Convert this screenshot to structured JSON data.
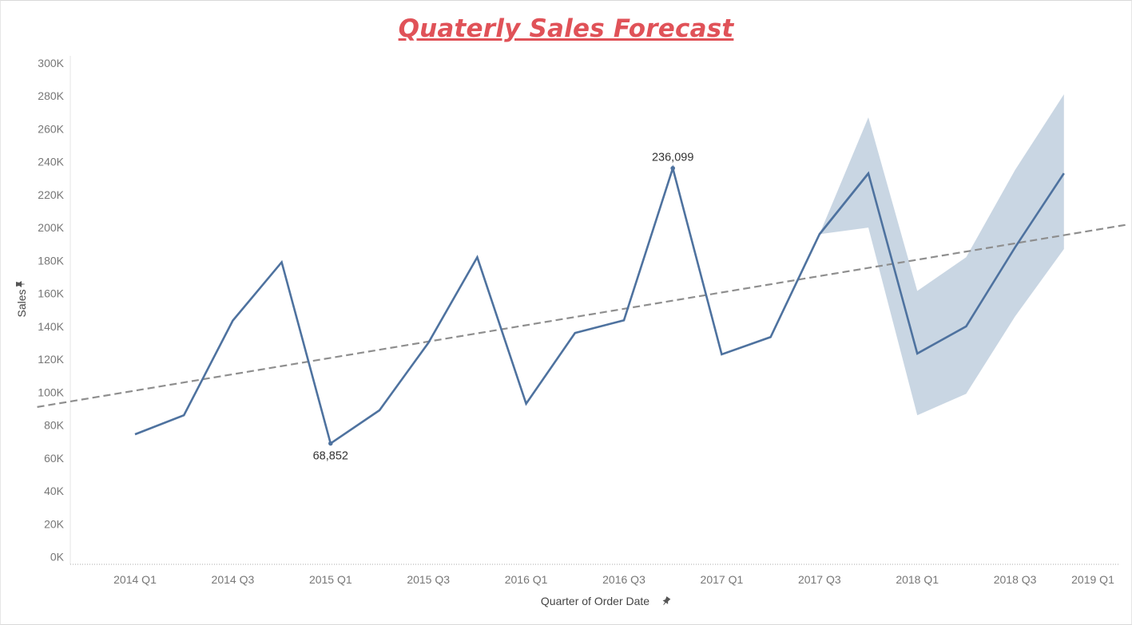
{
  "chart_data": {
    "type": "line",
    "title": "Quaterly Sales Forecast",
    "xlabel": "Quarter of Order Date",
    "ylabel": "Sales",
    "x": [
      "2014 Q1",
      "2014 Q2",
      "2014 Q3",
      "2014 Q4",
      "2015 Q1",
      "2015 Q2",
      "2015 Q3",
      "2015 Q4",
      "2016 Q1",
      "2016 Q2",
      "2016 Q3",
      "2016 Q4",
      "2017 Q1",
      "2017 Q2",
      "2017 Q3",
      "2017 Q4",
      "2018 Q1",
      "2018 Q2",
      "2018 Q3",
      "2018 Q4",
      "2019 Q1"
    ],
    "x_tick_labels": [
      "2014 Q1",
      "2014 Q3",
      "2015 Q1",
      "2015 Q3",
      "2016 Q1",
      "2016 Q3",
      "2017 Q1",
      "2017 Q3",
      "2018 Q1",
      "2018 Q3",
      "2019 Q1"
    ],
    "y_tick_labels": [
      "0K",
      "20K",
      "40K",
      "60K",
      "80K",
      "100K",
      "120K",
      "140K",
      "160K",
      "180K",
      "200K",
      "220K",
      "240K",
      "260K",
      "280K",
      "300K"
    ],
    "ylim": [
      0,
      300000
    ],
    "grid": false,
    "series": [
      {
        "kind": "actual",
        "color": "#4e729f",
        "x": [
          "2014 Q1",
          "2014 Q2",
          "2014 Q3",
          "2014 Q4",
          "2015 Q1",
          "2015 Q2",
          "2015 Q3",
          "2015 Q4",
          "2016 Q1",
          "2016 Q2",
          "2016 Q3",
          "2016 Q4",
          "2017 Q1",
          "2017 Q2",
          "2017 Q3",
          "2017 Q4"
        ],
        "values": [
          74400,
          86000,
          143500,
          179000,
          68852,
          89000,
          130000,
          182000,
          93000,
          136000,
          143700,
          236099,
          123000,
          133500,
          196000,
          233000
        ]
      },
      {
        "kind": "forecast",
        "color": "#4e729f",
        "x": [
          "2017 Q3",
          "2017 Q4",
          "2018 Q1",
          "2018 Q2",
          "2018 Q3",
          "2018 Q4"
        ],
        "values": [
          196000,
          233000,
          123500,
          140000,
          188000,
          233000
        ],
        "upper": [
          196000,
          267000,
          161500,
          182000,
          235000,
          281000
        ],
        "lower": [
          196000,
          200000,
          86000,
          99000,
          146000,
          187000
        ],
        "band_color": "#c9d6e3"
      },
      {
        "kind": "trend",
        "color": "#8e8e8e",
        "dash": true,
        "x": [
          "2013 Q3",
          "2019 Q1"
        ],
        "values": [
          91000,
          202000
        ]
      }
    ],
    "annotations": [
      {
        "x": "2015 Q1",
        "value": 68852,
        "label": "68,852",
        "position": "below"
      },
      {
        "x": "2016 Q4",
        "value": 236099,
        "label": "236,099",
        "position": "above"
      }
    ]
  }
}
